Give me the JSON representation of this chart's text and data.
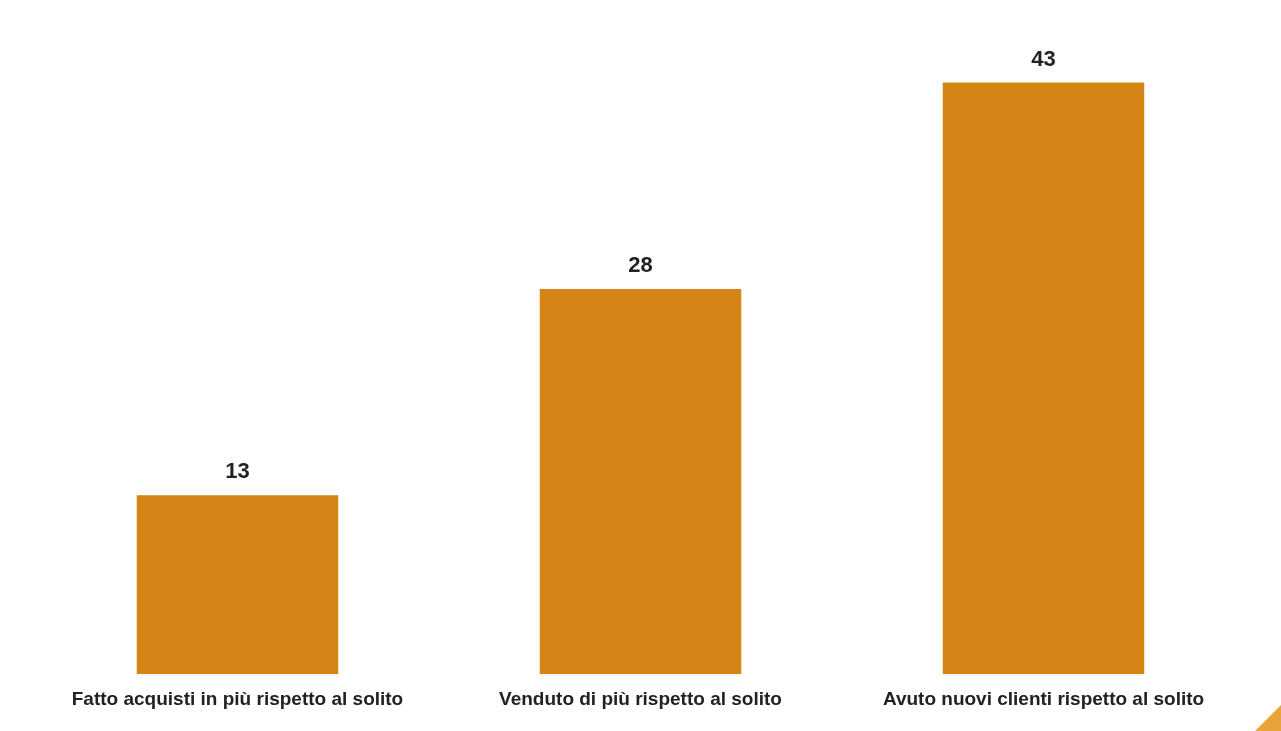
{
  "chart_data": {
    "type": "bar",
    "categories": [
      "Fatto acquisti in più rispetto al solito",
      "Venduto di più rispetto al solito",
      "Avuto nuovi clienti rispetto al solito"
    ],
    "values": [
      13,
      28,
      43
    ],
    "color": "#d48515",
    "data_labels": true,
    "grid": false,
    "legend": false
  }
}
